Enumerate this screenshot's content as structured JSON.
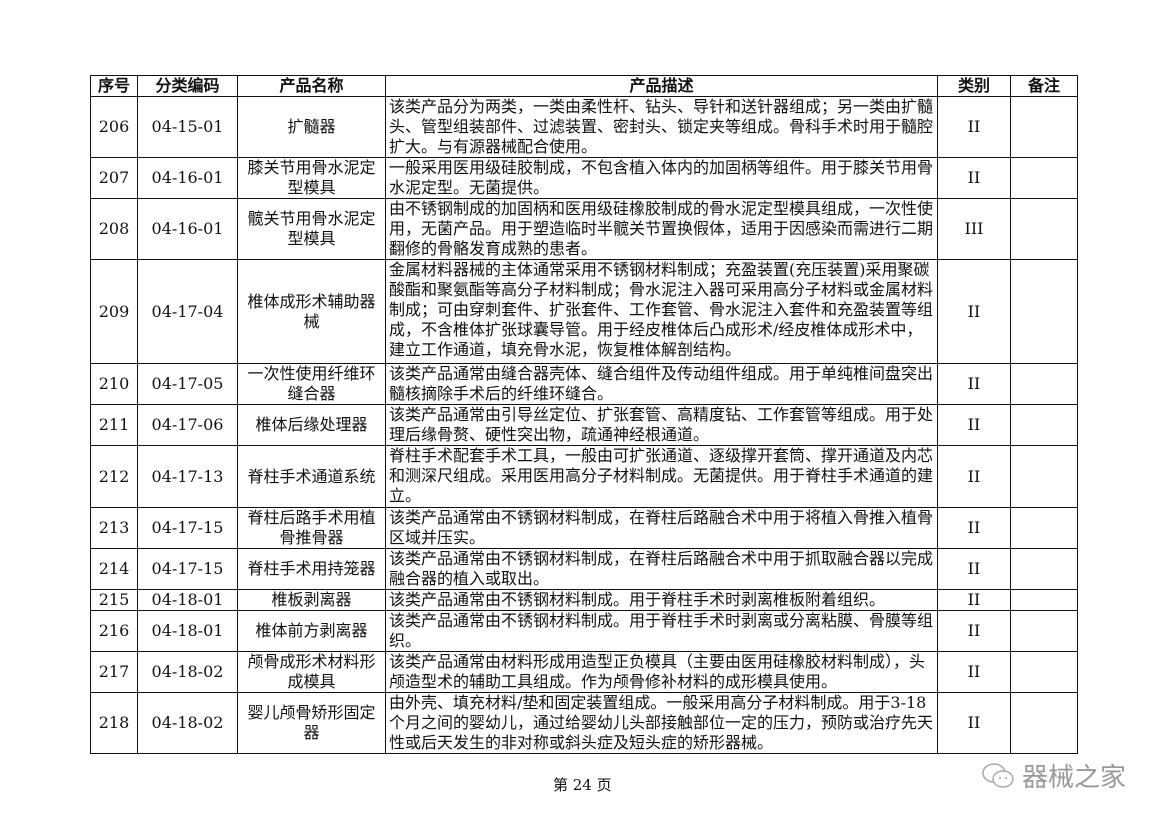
{
  "headers": [
    "序号",
    "分类编码",
    "产品名称",
    "产品描述",
    "类别",
    "备注"
  ],
  "rows": [
    {
      "no": "206",
      "code": "04-15-01",
      "name": "扩髓器",
      "desc": "该类产品分为两类，一类由柔性杆、钻头、导针和送针器组成；另一类由扩髓头、管型组装部件、过滤装置、密封头、锁定夹等组成。骨科手术时用于髓腔扩大。与有源器械配合使用。",
      "cls": "II",
      "note": ""
    },
    {
      "no": "207",
      "code": "04-16-01",
      "name": "膝关节用骨水泥定型模具",
      "desc": "一般采用医用级硅胶制成，不包含植入体内的加固柄等组件。用于膝关节用骨水泥定型。无菌提供。",
      "cls": "II",
      "note": ""
    },
    {
      "no": "208",
      "code": "04-16-01",
      "name": "髋关节用骨水泥定型模具",
      "desc": "由不锈钢制成的加固柄和医用级硅橡胶制成的骨水泥定型模具组成，一次性使用，无菌产品。用于塑造临时半髋关节置换假体，适用于因感染而需进行二期翻修的骨骼发育成熟的患者。",
      "cls": "III",
      "note": ""
    },
    {
      "no": "209",
      "code": "04-17-04",
      "name": "椎体成形术辅助器械",
      "desc": "金属材料器械的主体通常采用不锈钢材料制成；充盈装置(充压装置)采用聚碳酸酯和聚氨酯等高分子材料制成；骨水泥注入器可采用高分子材料或金属材料制成；可由穿刺套件、扩张套件、工作套管、骨水泥注入套件和充盈装置等组成，不含椎体扩张球囊导管。用于经皮椎体后凸成形术/经皮椎体成形术中，建立工作通道，填充骨水泥，恢复椎体解剖结构。",
      "cls": "II",
      "note": ""
    },
    {
      "no": "210",
      "code": "04-17-05",
      "name": "一次性使用纤维环缝合器",
      "desc": "该类产品通常由缝合器壳体、缝合组件及传动组件组成。用于单纯椎间盘突出髓核摘除手术后的纤维环缝合。",
      "cls": "II",
      "note": ""
    },
    {
      "no": "211",
      "code": "04-17-06",
      "name": "椎体后缘处理器",
      "desc": "该类产品通常由引导丝定位、扩张套管、高精度钻、工作套管等组成。用于处理后缘骨赘、硬性突出物，疏通神经根通道。",
      "cls": "II",
      "note": ""
    },
    {
      "no": "212",
      "code": "04-17-13",
      "name": "脊柱手术通道系统",
      "desc": "脊柱手术配套手术工具，一般由可扩张通道、逐级撑开套筒、撑开通道及内芯和测深尺组成。采用医用高分子材料制成。无菌提供。用于脊柱手术通道的建立。",
      "cls": "II",
      "note": ""
    },
    {
      "no": "213",
      "code": "04-17-15",
      "name": "脊柱后路手术用植骨推骨器",
      "desc": "该类产品通常由不锈钢材料制成，在脊柱后路融合术中用于将植入骨推入植骨区域并压实。",
      "cls": "II",
      "note": ""
    },
    {
      "no": "214",
      "code": "04-17-15",
      "name": "脊柱手术用持笼器",
      "desc": "该类产品通常由不锈钢材料制成，在脊柱后路融合术中用于抓取融合器以完成融合器的植入或取出。",
      "cls": "II",
      "note": ""
    },
    {
      "no": "215",
      "code": "04-18-01",
      "name": "椎板剥离器",
      "desc": "该类产品通常由不锈钢材料制成。用于脊柱手术时剥离椎板附着组织。",
      "cls": "II",
      "note": ""
    },
    {
      "no": "216",
      "code": "04-18-01",
      "name": "椎体前方剥离器",
      "desc": "该类产品通常由不锈钢材料制成。用于脊柱手术时剥离或分离粘膜、骨膜等组织。",
      "cls": "II",
      "note": ""
    },
    {
      "no": "217",
      "code": "04-18-02",
      "name": "颅骨成形术材料形成模具",
      "desc": "该类产品通常由材料形成用造型正负模具（主要由医用硅橡胶材料制成），头颅造型术的辅助工具组成。作为颅骨修补材料的成形模具使用。",
      "cls": "II",
      "note": ""
    },
    {
      "no": "218",
      "code": "04-18-02",
      "name": "婴儿颅骨矫形固定器",
      "desc": "由外壳、填充材料/垫和固定装置组成。一般采用高分子材料制成。用于3-18个月之间的婴幼儿，通过给婴幼儿头部接触部位一定的压力，预防或治疗先天性或后天发生的非对称或斜头症及短头症的矫形器械。",
      "cls": "II",
      "note": ""
    }
  ],
  "footer": {
    "page": "第 24 页"
  },
  "watermark": {
    "text": "器械之家",
    "icon": "wechat-icon"
  }
}
